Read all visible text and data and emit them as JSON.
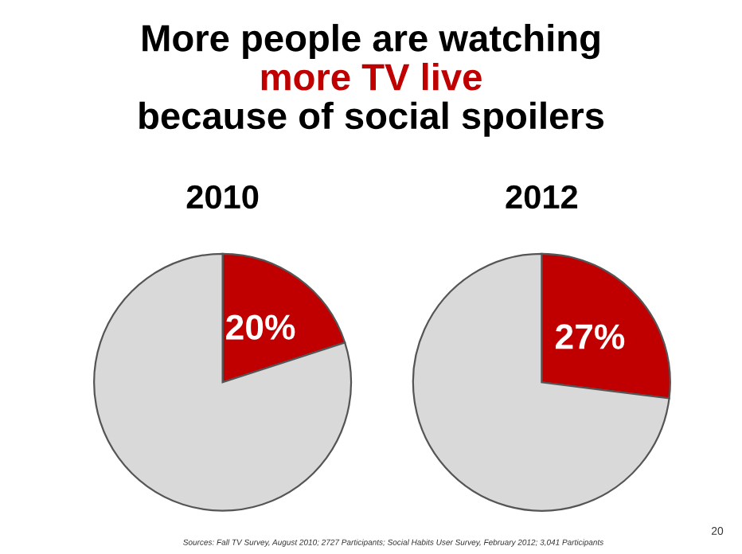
{
  "chart_data": [
    {
      "type": "other",
      "title": "More people are watching",
      "subtitle": "more TV live",
      "annotations": [
        "because of social spoilers",
        "Sources: Fall TV Survey, August 2010; 2727 Participants; Social Habits User Survey, February 2012; 3,041 Participants",
        "20"
      ]
    },
    {
      "type": "pie",
      "title": "2010",
      "categories": [
        null,
        null
      ],
      "values": [
        20,
        80
      ],
      "colors": [
        "#c00000",
        "#d9d9d9"
      ],
      "value_labels": [
        "20%",
        null
      ]
    },
    {
      "type": "pie",
      "title": "2012",
      "categories": [
        null,
        null
      ],
      "values": [
        27,
        73
      ],
      "colors": [
        "#c00000",
        "#d9d9d9"
      ],
      "value_labels": [
        "27%",
        null
      ]
    }
  ]
}
